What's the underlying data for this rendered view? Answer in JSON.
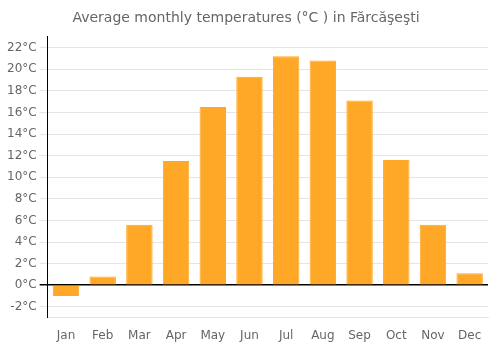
{
  "chart_data": {
    "type": "bar",
    "title": "Average monthly temperatures (°C ) in Fărcăşeşti",
    "categories": [
      "Jan",
      "Feb",
      "Mar",
      "Apr",
      "May",
      "Jun",
      "Jul",
      "Aug",
      "Sep",
      "Oct",
      "Nov",
      "Dec"
    ],
    "values": [
      -1.0,
      0.8,
      5.6,
      11.5,
      16.5,
      19.3,
      21.2,
      20.8,
      17.1,
      11.6,
      5.6,
      1.1
    ],
    "color": "#FFA726",
    "ylim": [
      -3,
      23
    ],
    "yticks": [
      {
        "value": -2,
        "label": "-2°C"
      },
      {
        "value": 0,
        "label": "0°C"
      },
      {
        "value": 2,
        "label": "2°C"
      },
      {
        "value": 4,
        "label": "4°C"
      },
      {
        "value": 6,
        "label": "6°C"
      },
      {
        "value": 8,
        "label": "8°C"
      },
      {
        "value": 10,
        "label": "10°C"
      },
      {
        "value": 12,
        "label": "12°C"
      },
      {
        "value": 14,
        "label": "14°C"
      },
      {
        "value": 16,
        "label": "16°C"
      },
      {
        "value": 18,
        "label": "18°C"
      },
      {
        "value": 20,
        "label": "20°C"
      },
      {
        "value": 22,
        "label": "22°C"
      }
    ],
    "grid": true
  }
}
